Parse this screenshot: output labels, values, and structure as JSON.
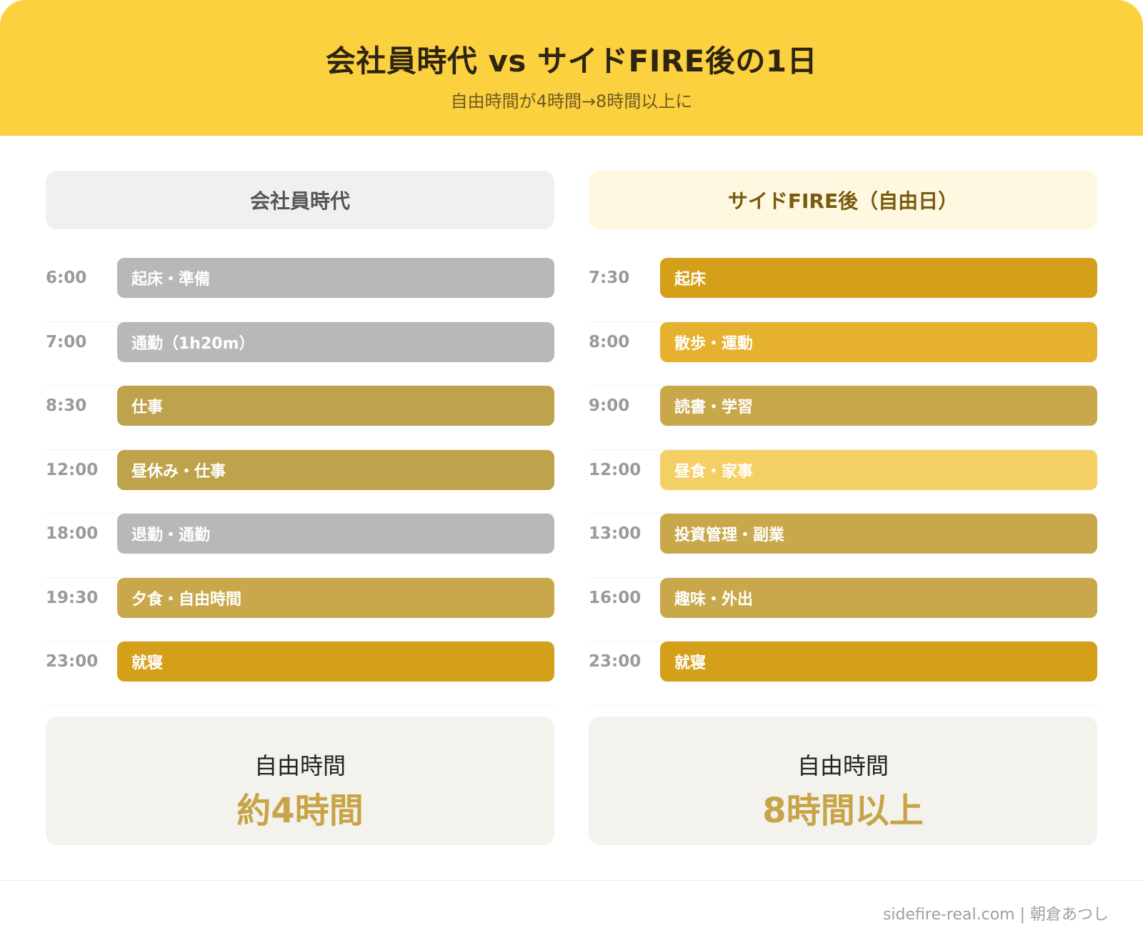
{
  "header": {
    "title": "会社員時代 vs サイドFIRE後の1日",
    "subtitle": "自由時間が4時間→8時間以上に"
  },
  "left": {
    "heading": "会社員時代",
    "rows": [
      {
        "time": "6:00",
        "label": "起床・準備",
        "color": "#b8b8b8"
      },
      {
        "time": "7:00",
        "label": "通勤（1h20m）",
        "color": "#b8b8b8"
      },
      {
        "time": "8:30",
        "label": "仕事",
        "color": "#bfa24c"
      },
      {
        "time": "12:00",
        "label": "昼休み・仕事",
        "color": "#bfa24c"
      },
      {
        "time": "18:00",
        "label": "退勤・通勤",
        "color": "#b8b8b8"
      },
      {
        "time": "19:30",
        "label": "夕食・自由時間",
        "color": "#c9a84c"
      },
      {
        "time": "23:00",
        "label": "就寝",
        "color": "#d4a01a"
      }
    ],
    "summary": {
      "label": "自由時間",
      "value": "約4時間"
    }
  },
  "right": {
    "heading": "サイドFIRE後（自由日）",
    "rows": [
      {
        "time": "7:30",
        "label": "起床",
        "color": "#d4a01a"
      },
      {
        "time": "8:00",
        "label": "散歩・運動",
        "color": "#e6b12e"
      },
      {
        "time": "9:00",
        "label": "読書・学習",
        "color": "#c9a84c"
      },
      {
        "time": "12:00",
        "label": "昼食・家事",
        "color": "#f4cf63"
      },
      {
        "time": "13:00",
        "label": "投資管理・副業",
        "color": "#c9a84c"
      },
      {
        "time": "16:00",
        "label": "趣味・外出",
        "color": "#c9a84c"
      },
      {
        "time": "23:00",
        "label": "就寝",
        "color": "#d4a01a"
      }
    ],
    "summary": {
      "label": "自由時間",
      "value": "8時間以上"
    }
  },
  "footer": {
    "text": "sidefire-real.com | 朝倉あつし"
  }
}
